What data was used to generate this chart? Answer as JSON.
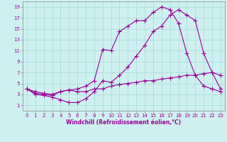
{
  "xlabel": "Windchill (Refroidissement éolien,°C)",
  "ylabel": "",
  "bg_color": "#cff0f0",
  "grid_color": "#aadddd",
  "line_color": "#990099",
  "xlim": [
    -0.5,
    23.5
  ],
  "ylim": [
    0,
    20
  ],
  "xticks": [
    0,
    1,
    2,
    3,
    4,
    5,
    6,
    7,
    8,
    9,
    10,
    11,
    12,
    13,
    14,
    15,
    16,
    17,
    18,
    19,
    20,
    21,
    22,
    23
  ],
  "yticks": [
    1,
    3,
    5,
    7,
    9,
    11,
    13,
    15,
    17,
    19
  ],
  "line1_x": [
    0,
    1,
    2,
    3,
    4,
    5,
    6,
    7,
    8,
    9,
    10,
    11,
    12,
    13,
    14,
    15,
    16,
    17,
    18,
    19,
    20,
    21,
    22,
    23
  ],
  "line1_y": [
    4.0,
    3.2,
    3.0,
    2.8,
    3.5,
    3.8,
    4.0,
    4.5,
    5.5,
    11.2,
    11.0,
    14.5,
    15.5,
    16.5,
    16.5,
    18.0,
    19.0,
    18.5,
    16.0,
    10.5,
    6.5,
    4.5,
    4.0,
    3.5
  ],
  "line2_x": [
    0,
    1,
    2,
    3,
    4,
    5,
    6,
    7,
    8,
    9,
    10,
    11,
    12,
    13,
    14,
    15,
    16,
    17,
    18,
    19,
    20,
    21,
    22,
    23
  ],
  "line2_y": [
    4.0,
    3.0,
    2.8,
    2.5,
    2.0,
    1.5,
    1.5,
    2.2,
    3.5,
    5.5,
    5.2,
    6.5,
    8.0,
    10.0,
    12.0,
    14.5,
    15.5,
    17.5,
    18.5,
    17.5,
    16.5,
    10.5,
    7.0,
    4.0
  ],
  "line3_x": [
    0,
    1,
    2,
    3,
    4,
    5,
    6,
    7,
    8,
    9,
    10,
    11,
    12,
    13,
    14,
    15,
    16,
    17,
    18,
    19,
    20,
    21,
    22,
    23
  ],
  "line3_y": [
    4.0,
    3.5,
    3.2,
    3.0,
    3.5,
    3.8,
    3.5,
    3.5,
    4.0,
    4.0,
    4.5,
    4.8,
    5.0,
    5.2,
    5.5,
    5.5,
    5.8,
    6.0,
    6.2,
    6.5,
    6.5,
    6.8,
    7.0,
    6.5
  ],
  "xlabel_fontsize": 5.5,
  "tick_fontsize": 5,
  "lw": 0.8,
  "ms": 2.5
}
